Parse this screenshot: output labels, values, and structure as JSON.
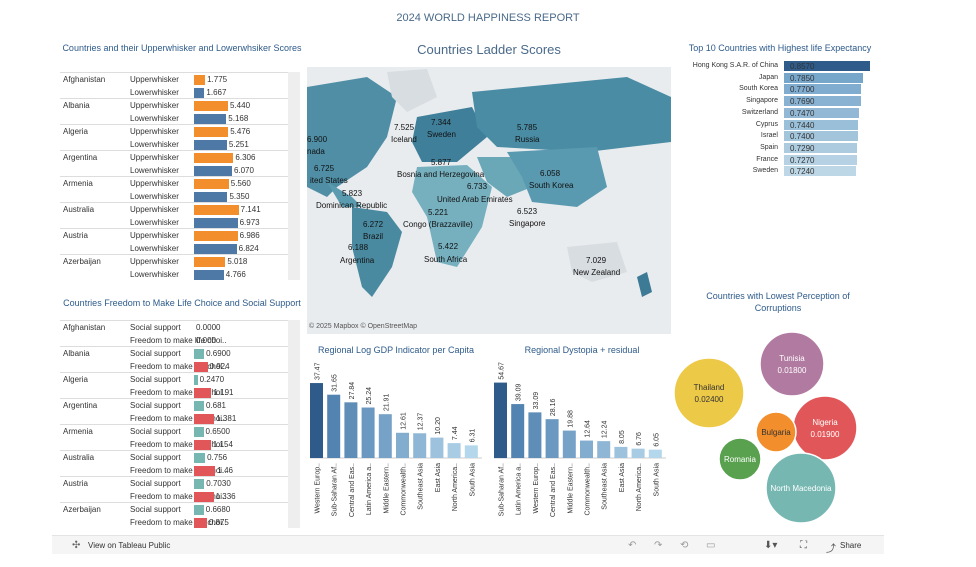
{
  "title": "2024 WORLD HAPPINESS REPORT",
  "panels": {
    "whisker_title": "Countries and their Upperwhisker and Lowerwhsiker Scores",
    "freedom_title": "Countries Freedom to Make Life Choice and Social Support",
    "ladder_title": "Countries Ladder Scores",
    "life_title": "Top 10 Countries with Highest life Expectancy",
    "gdp_title": "Regional Log GDP Indicator per Capita",
    "dystopia_title": "Regional Dystopia + residual",
    "corruption_title": "Countries with Lowest Perception of Corruptions"
  },
  "colors": {
    "orange": "#f28e2b",
    "blue": "#4e79a7",
    "teal": "#76b7b2",
    "red": "#e15759",
    "dark_blue": "#2e5b8a",
    "light_blue": "#a0cbe8"
  },
  "chart_data": [
    {
      "type": "bar",
      "name_ref": "whisker",
      "categories": [
        "Afghanistan",
        "Albania",
        "Algeria",
        "Argentina",
        "Armenia",
        "Australia",
        "Austria",
        "Azerbaijan"
      ],
      "series": [
        {
          "name": "Upperwhisker",
          "values": [
            1.775,
            5.44,
            5.476,
            6.306,
            5.56,
            7.141,
            6.986,
            5.018
          ]
        },
        {
          "name": "Lowerwhisker",
          "values": [
            1.667,
            5.168,
            5.251,
            6.07,
            5.35,
            6.973,
            6.824,
            4.766
          ]
        }
      ],
      "value_labels": [
        [
          "1.775",
          "1.667"
        ],
        [
          "5.440",
          "5.168"
        ],
        [
          "5.476",
          "5.251"
        ],
        [
          "6.306",
          "6.070"
        ],
        [
          "5.560",
          "5.350"
        ],
        [
          "7.141",
          "6.973"
        ],
        [
          "6.986",
          "6.824"
        ],
        [
          "5.018",
          "4.766"
        ]
      ],
      "xlim": [
        0,
        8
      ]
    },
    {
      "type": "bar",
      "name_ref": "freedom",
      "categories": [
        "Afghanistan",
        "Albania",
        "Algeria",
        "Argentina",
        "Armenia",
        "Australia",
        "Austria",
        "Azerbaijan"
      ],
      "series": [
        {
          "name": "Social support",
          "values": [
            0.0,
            0.69,
            0.247,
            0.681,
            0.65,
            0.756,
            0.703,
            0.668
          ]
        },
        {
          "name": "Freedom to make life choi..",
          "values": [
            0.0,
            0.924,
            1.191,
            1.381,
            1.154,
            1.46,
            1.336,
            0.875
          ]
        }
      ],
      "value_labels": [
        [
          "0.0000",
          "0.000"
        ],
        [
          "0.6900",
          "0.924"
        ],
        [
          "0.2470",
          "1.191"
        ],
        [
          "0.681",
          "1.381"
        ],
        [
          "0.6500",
          "1.154"
        ],
        [
          "0.756",
          "1.46"
        ],
        [
          "0.7030",
          "1.336"
        ],
        [
          "0.6680",
          "0.875"
        ]
      ],
      "xlim": [
        0,
        1.5
      ]
    },
    {
      "type": "bar",
      "name_ref": "life",
      "categories": [
        "Hong Kong S.A.R. of China",
        "Japan",
        "South Korea",
        "Singapore",
        "Switzerland",
        "Cyprus",
        "Israel",
        "Spain",
        "France",
        "Sweden"
      ],
      "values": [
        0.857,
        0.785,
        0.77,
        0.769,
        0.747,
        0.744,
        0.74,
        0.729,
        0.727,
        0.724
      ],
      "labels": [
        "0.8570",
        "0.7850",
        "0.7700",
        "0.7690",
        "0.7470",
        "0.7440",
        "0.7400",
        "0.7290",
        "0.7270",
        "0.7240"
      ],
      "xlim": [
        0,
        1
      ]
    },
    {
      "type": "bar",
      "name_ref": "gdp",
      "categories": [
        "Western Europ..",
        "Sub-Saharan Af..",
        "Central and Eas..",
        "Latin America a..",
        "Middle Eastern..",
        "Commonwealth..",
        "Southeast Asia",
        "East Asia",
        "North America..",
        "South Asia"
      ],
      "values": [
        37.47,
        31.65,
        27.84,
        25.24,
        21.91,
        12.61,
        12.37,
        10.2,
        7.44,
        6.31
      ],
      "labels": [
        "37.47",
        "31.65",
        "27.84",
        "25.24",
        "21.91",
        "12.61",
        "12.37",
        "10.20",
        "7.44",
        "6.31"
      ],
      "ylim": [
        0,
        40
      ]
    },
    {
      "type": "bar",
      "name_ref": "dystopia",
      "categories": [
        "Sub-Saharan Af..",
        "Latin America a..",
        "Western Europ..",
        "Central and Eas..",
        "Middle Eastern..",
        "Commonwealth..",
        "Southeast Asia",
        "East Asia",
        "North America..",
        "South Asia"
      ],
      "values": [
        54.67,
        39.09,
        33.09,
        28.16,
        19.88,
        12.64,
        12.24,
        8.05,
        6.76,
        6.05
      ],
      "labels": [
        "54.67",
        "39.09",
        "33.09",
        "28.16",
        "19.88",
        "12.64",
        "12.24",
        "8.05",
        "6.76",
        "6.05"
      ],
      "ylim": [
        0,
        58
      ]
    },
    {
      "type": "scatter",
      "name_ref": "corruption",
      "points": [
        {
          "label": "Thailand",
          "value": "0.02400",
          "num": 0.024,
          "color": "#edc948"
        },
        {
          "label": "Tunisia",
          "value": "0.01800",
          "num": 0.018,
          "color": "#b07aa1"
        },
        {
          "label": "Nigeria",
          "value": "0.01900",
          "num": 0.019,
          "color": "#e15759"
        },
        {
          "label": "Bulgaria",
          "value": "",
          "num": 0.007,
          "color": "#f28e2b"
        },
        {
          "label": "Romania",
          "value": "",
          "num": 0.006,
          "color": "#59a14f"
        },
        {
          "label": "North Macedonia",
          "value": "",
          "num": 0.02,
          "color": "#76b7b2"
        }
      ]
    }
  ],
  "map_labels": [
    {
      "text": "5.785"
    },
    {
      "text": "Russia"
    },
    {
      "text": "7.525"
    },
    {
      "text": "Iceland"
    },
    {
      "text": "7.344"
    },
    {
      "text": "Sweden"
    },
    {
      "text": "6.900"
    },
    {
      "text": "nada"
    },
    {
      "text": "6.725"
    },
    {
      "text": "ited States"
    },
    {
      "text": "5.823"
    },
    {
      "text": "Dominican Republic"
    },
    {
      "text": "5.877"
    },
    {
      "text": "Bosnia and Herzegovina"
    },
    {
      "text": "6.733"
    },
    {
      "text": "United Arab Emirates"
    },
    {
      "text": "6.058"
    },
    {
      "text": "South Korea"
    },
    {
      "text": "5.221"
    },
    {
      "text": "Congo (Brazzaville)"
    },
    {
      "text": "6.523"
    },
    {
      "text": "Singapore"
    },
    {
      "text": "6.272"
    },
    {
      "text": "Brazil"
    },
    {
      "text": "6.188"
    },
    {
      "text": "Argentina"
    },
    {
      "text": "5.422"
    },
    {
      "text": "South Africa"
    },
    {
      "text": "7.029"
    },
    {
      "text": "New Zealand"
    }
  ],
  "map_credit": "© 2025 Mapbox  © OpenStreetMap",
  "toolbar": {
    "view_label": "View on Tableau Public",
    "share_label": "Share"
  }
}
